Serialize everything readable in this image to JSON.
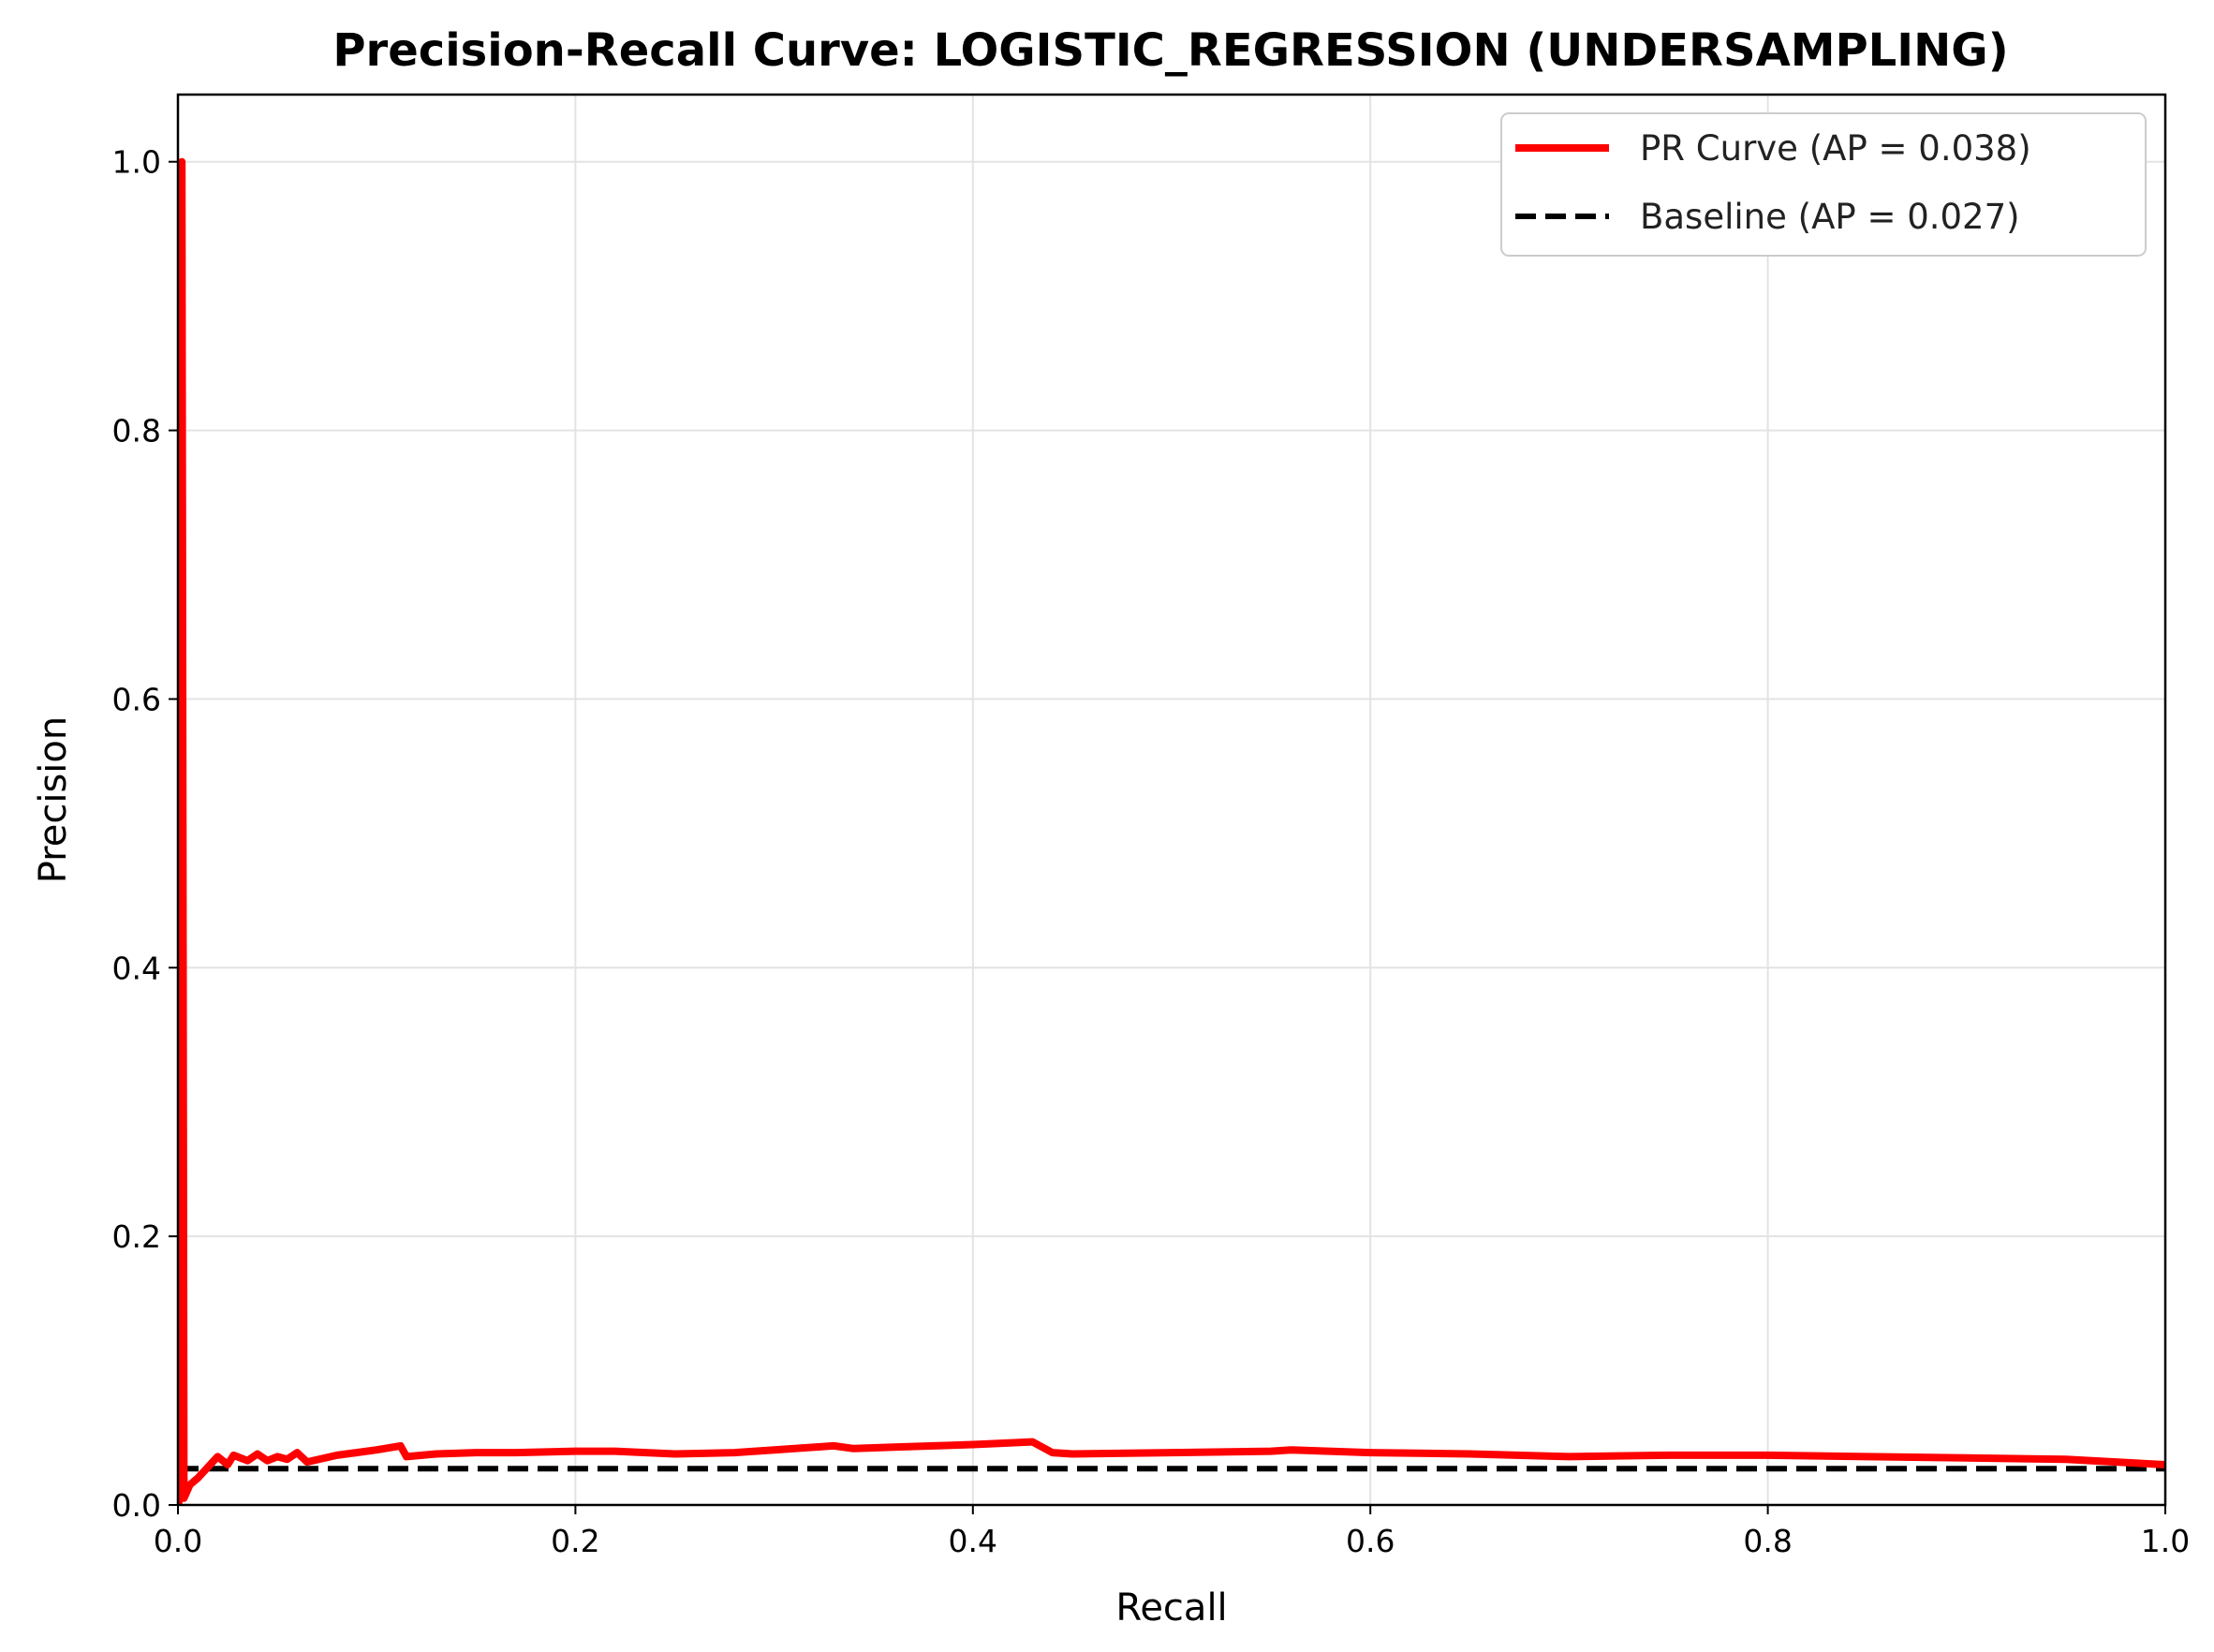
{
  "chart_data": {
    "type": "line",
    "title": "Precision-Recall Curve: LOGISTIC_REGRESSION (UNDERSAMPLING)",
    "xlabel": "Recall",
    "ylabel": "Precision",
    "xlim": [
      0.0,
      1.0
    ],
    "ylim": [
      0.0,
      1.05
    ],
    "x_ticks": [
      "0.0",
      "0.2",
      "0.4",
      "0.6",
      "0.8",
      "1.0"
    ],
    "y_ticks": [
      "0.0",
      "0.2",
      "0.4",
      "0.6",
      "0.8",
      "1.0"
    ],
    "grid": true,
    "legend_position": "top-right",
    "series": [
      {
        "name": "PR Curve (AP = 0.038)",
        "color": "#ff0000",
        "style": "solid",
        "x": [
          0.0,
          0.002,
          0.002,
          0.003,
          0.006,
          0.01,
          0.015,
          0.02,
          0.025,
          0.028,
          0.035,
          0.04,
          0.045,
          0.05,
          0.055,
          0.06,
          0.065,
          0.08,
          0.1,
          0.112,
          0.115,
          0.13,
          0.15,
          0.17,
          0.2,
          0.22,
          0.25,
          0.28,
          0.3,
          0.33,
          0.34,
          0.36,
          0.38,
          0.4,
          0.43,
          0.44,
          0.45,
          0.5,
          0.55,
          0.56,
          0.6,
          0.65,
          0.7,
          0.75,
          0.8,
          0.85,
          0.9,
          0.95,
          1.0
        ],
        "y": [
          0.0,
          0.01,
          1.0,
          0.005,
          0.015,
          0.02,
          0.028,
          0.036,
          0.03,
          0.037,
          0.033,
          0.038,
          0.033,
          0.036,
          0.034,
          0.039,
          0.032,
          0.037,
          0.041,
          0.044,
          0.036,
          0.038,
          0.039,
          0.039,
          0.04,
          0.04,
          0.038,
          0.039,
          0.041,
          0.044,
          0.042,
          0.043,
          0.044,
          0.045,
          0.047,
          0.039,
          0.038,
          0.039,
          0.04,
          0.041,
          0.039,
          0.038,
          0.036,
          0.037,
          0.037,
          0.036,
          0.035,
          0.034,
          0.03
        ]
      },
      {
        "name": "Baseline (AP = 0.027)",
        "color": "#000000",
        "style": "dashed",
        "x": [
          0.0,
          1.0
        ],
        "y": [
          0.027,
          0.027
        ]
      }
    ]
  }
}
